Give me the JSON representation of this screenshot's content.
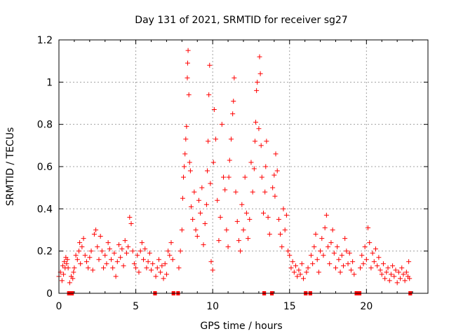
{
  "chart_data": {
    "type": "scatter",
    "title": "Day 131 of 2021, SRMTID for receiver sg27",
    "xlabel": "GPS time / hours",
    "ylabel": "SRMTID / TECUs",
    "xlim": [
      0,
      24
    ],
    "ylim": [
      0,
      1.2
    ],
    "x_ticks": [
      0,
      5,
      10,
      15,
      20
    ],
    "y_ticks": [
      0,
      0.2,
      0.4,
      0.6,
      0.8,
      1,
      1.2
    ],
    "x_tick_labels": [
      "0",
      "5",
      "10",
      "15",
      "20"
    ],
    "y_tick_labels": [
      "0",
      "0.2",
      "0.4",
      "0.6",
      "0.8",
      "1",
      "1.2"
    ],
    "grid": true,
    "legend": "none",
    "marker": "+",
    "color": "#ff0000",
    "baseline_segments": [
      [
        0.6,
        0.7
      ],
      [
        0.8,
        0.9
      ],
      [
        6.2,
        6.3
      ],
      [
        7.4,
        7.5
      ],
      [
        7.7,
        7.8
      ],
      [
        13.3,
        13.4
      ],
      [
        13.8,
        13.9
      ],
      [
        16.0,
        16.1
      ],
      [
        16.3,
        16.4
      ],
      [
        19.3,
        19.4
      ],
      [
        19.5,
        19.6
      ],
      [
        22.8,
        22.9
      ]
    ],
    "series": [
      {
        "name": "SRMTID",
        "points": [
          [
            0.0,
            0.08
          ],
          [
            0.1,
            0.1
          ],
          [
            0.2,
            0.06
          ],
          [
            0.25,
            0.13
          ],
          [
            0.3,
            0.09
          ],
          [
            0.35,
            0.15
          ],
          [
            0.4,
            0.12
          ],
          [
            0.45,
            0.17
          ],
          [
            0.5,
            0.14
          ],
          [
            0.55,
            0.16
          ],
          [
            0.6,
            0.12
          ],
          [
            0.7,
            0.05
          ],
          [
            0.8,
            0.08
          ],
          [
            0.9,
            0.07
          ],
          [
            0.95,
            0.1
          ],
          [
            1.0,
            0.12
          ],
          [
            1.1,
            0.18
          ],
          [
            1.2,
            0.16
          ],
          [
            1.3,
            0.2
          ],
          [
            1.35,
            0.24
          ],
          [
            1.4,
            0.14
          ],
          [
            1.5,
            0.22
          ],
          [
            1.6,
            0.26
          ],
          [
            1.7,
            0.18
          ],
          [
            1.8,
            0.15
          ],
          [
            1.9,
            0.12
          ],
          [
            2.0,
            0.17
          ],
          [
            2.1,
            0.2
          ],
          [
            2.2,
            0.11
          ],
          [
            2.3,
            0.28
          ],
          [
            2.4,
            0.3
          ],
          [
            2.5,
            0.22
          ],
          [
            2.6,
            0.16
          ],
          [
            2.7,
            0.27
          ],
          [
            2.8,
            0.2
          ],
          [
            2.9,
            0.12
          ],
          [
            3.0,
            0.18
          ],
          [
            3.1,
            0.14
          ],
          [
            3.2,
            0.24
          ],
          [
            3.3,
            0.21
          ],
          [
            3.4,
            0.16
          ],
          [
            3.5,
            0.12
          ],
          [
            3.6,
            0.19
          ],
          [
            3.7,
            0.08
          ],
          [
            3.8,
            0.15
          ],
          [
            3.9,
            0.23
          ],
          [
            4.0,
            0.17
          ],
          [
            4.1,
            0.21
          ],
          [
            4.2,
            0.13
          ],
          [
            4.3,
            0.25
          ],
          [
            4.4,
            0.19
          ],
          [
            4.5,
            0.22
          ],
          [
            4.6,
            0.36
          ],
          [
            4.7,
            0.33
          ],
          [
            4.8,
            0.2
          ],
          [
            4.9,
            0.14
          ],
          [
            5.0,
            0.12
          ],
          [
            5.1,
            0.18
          ],
          [
            5.2,
            0.1
          ],
          [
            5.3,
            0.2
          ],
          [
            5.4,
            0.24
          ],
          [
            5.5,
            0.16
          ],
          [
            5.6,
            0.21
          ],
          [
            5.7,
            0.12
          ],
          [
            5.8,
            0.15
          ],
          [
            5.9,
            0.19
          ],
          [
            6.0,
            0.11
          ],
          [
            6.1,
            0.14
          ],
          [
            6.3,
            0.08
          ],
          [
            6.4,
            0.12
          ],
          [
            6.5,
            0.16
          ],
          [
            6.6,
            0.1
          ],
          [
            6.7,
            0.13
          ],
          [
            6.8,
            0.07
          ],
          [
            6.9,
            0.14
          ],
          [
            7.0,
            0.09
          ],
          [
            7.1,
            0.2
          ],
          [
            7.2,
            0.18
          ],
          [
            7.3,
            0.24
          ],
          [
            7.4,
            0.16
          ],
          [
            7.8,
            0.12
          ],
          [
            7.9,
            0.2
          ],
          [
            8.0,
            0.3
          ],
          [
            8.05,
            0.45
          ],
          [
            8.1,
            0.55
          ],
          [
            8.15,
            0.6
          ],
          [
            8.2,
            0.66
          ],
          [
            8.25,
            0.73
          ],
          [
            8.3,
            0.79
          ],
          [
            8.35,
            1.02
          ],
          [
            8.37,
            1.09
          ],
          [
            8.4,
            1.15
          ],
          [
            8.45,
            0.94
          ],
          [
            8.5,
            0.62
          ],
          [
            8.55,
            0.58
          ],
          [
            8.6,
            0.41
          ],
          [
            8.7,
            0.35
          ],
          [
            8.8,
            0.48
          ],
          [
            8.9,
            0.3
          ],
          [
            9.0,
            0.27
          ],
          [
            9.1,
            0.44
          ],
          [
            9.2,
            0.38
          ],
          [
            9.3,
            0.5
          ],
          [
            9.4,
            0.23
          ],
          [
            9.5,
            0.33
          ],
          [
            9.6,
            0.42
          ],
          [
            9.65,
            0.58
          ],
          [
            9.7,
            0.72
          ],
          [
            9.75,
            0.94
          ],
          [
            9.8,
            1.08
          ],
          [
            9.85,
            0.52
          ],
          [
            9.9,
            0.15
          ],
          [
            10.0,
            0.11
          ],
          [
            10.05,
            0.62
          ],
          [
            10.1,
            0.87
          ],
          [
            10.2,
            0.73
          ],
          [
            10.3,
            0.44
          ],
          [
            10.4,
            0.25
          ],
          [
            10.5,
            0.36
          ],
          [
            10.6,
            0.8
          ],
          [
            10.7,
            0.55
          ],
          [
            10.8,
            0.49
          ],
          [
            10.9,
            0.3
          ],
          [
            11.0,
            0.22
          ],
          [
            11.05,
            0.55
          ],
          [
            11.1,
            0.63
          ],
          [
            11.2,
            0.73
          ],
          [
            11.3,
            0.85
          ],
          [
            11.35,
            0.91
          ],
          [
            11.4,
            1.02
          ],
          [
            11.5,
            0.48
          ],
          [
            11.6,
            0.34
          ],
          [
            11.7,
            0.25
          ],
          [
            11.8,
            0.2
          ],
          [
            11.9,
            0.42
          ],
          [
            12.0,
            0.3
          ],
          [
            12.1,
            0.55
          ],
          [
            12.2,
            0.38
          ],
          [
            12.3,
            0.26
          ],
          [
            12.4,
            0.35
          ],
          [
            12.5,
            0.62
          ],
          [
            12.6,
            0.48
          ],
          [
            12.7,
            0.59
          ],
          [
            12.75,
            0.72
          ],
          [
            12.8,
            0.81
          ],
          [
            12.85,
            0.96
          ],
          [
            12.9,
            1.0
          ],
          [
            13.0,
            0.78
          ],
          [
            13.05,
            1.12
          ],
          [
            13.1,
            1.04
          ],
          [
            13.15,
            0.7
          ],
          [
            13.2,
            0.55
          ],
          [
            13.3,
            0.38
          ],
          [
            13.4,
            0.48
          ],
          [
            13.45,
            0.6
          ],
          [
            13.5,
            0.72
          ],
          [
            13.6,
            0.36
          ],
          [
            13.7,
            0.28
          ],
          [
            13.9,
            0.5
          ],
          [
            14.0,
            0.56
          ],
          [
            14.05,
            0.46
          ],
          [
            14.1,
            0.66
          ],
          [
            14.2,
            0.58
          ],
          [
            14.3,
            0.35
          ],
          [
            14.4,
            0.28
          ],
          [
            14.5,
            0.22
          ],
          [
            14.6,
            0.4
          ],
          [
            14.7,
            0.3
          ],
          [
            14.8,
            0.37
          ],
          [
            14.9,
            0.2
          ],
          [
            15.0,
            0.18
          ],
          [
            15.1,
            0.12
          ],
          [
            15.2,
            0.15
          ],
          [
            15.3,
            0.1
          ],
          [
            15.4,
            0.13
          ],
          [
            15.5,
            0.08
          ],
          [
            15.6,
            0.11
          ],
          [
            15.7,
            0.09
          ],
          [
            15.8,
            0.14
          ],
          [
            15.9,
            0.07
          ],
          [
            16.1,
            0.1
          ],
          [
            16.2,
            0.12
          ],
          [
            16.4,
            0.18
          ],
          [
            16.5,
            0.14
          ],
          [
            16.6,
            0.22
          ],
          [
            16.7,
            0.28
          ],
          [
            16.8,
            0.16
          ],
          [
            16.9,
            0.1
          ],
          [
            17.0,
            0.2
          ],
          [
            17.1,
            0.26
          ],
          [
            17.2,
            0.18
          ],
          [
            17.3,
            0.31
          ],
          [
            17.4,
            0.37
          ],
          [
            17.5,
            0.22
          ],
          [
            17.6,
            0.14
          ],
          [
            17.7,
            0.24
          ],
          [
            17.8,
            0.3
          ],
          [
            17.9,
            0.19
          ],
          [
            18.0,
            0.12
          ],
          [
            18.1,
            0.22
          ],
          [
            18.2,
            0.16
          ],
          [
            18.3,
            0.1
          ],
          [
            18.4,
            0.18
          ],
          [
            18.5,
            0.13
          ],
          [
            18.6,
            0.26
          ],
          [
            18.7,
            0.2
          ],
          [
            18.8,
            0.14
          ],
          [
            18.9,
            0.19
          ],
          [
            19.0,
            0.11
          ],
          [
            19.1,
            0.15
          ],
          [
            19.2,
            0.09
          ],
          [
            19.6,
            0.12
          ],
          [
            19.7,
            0.18
          ],
          [
            19.8,
            0.14
          ],
          [
            19.9,
            0.22
          ],
          [
            20.0,
            0.16
          ],
          [
            20.1,
            0.31
          ],
          [
            20.2,
            0.24
          ],
          [
            20.3,
            0.12
          ],
          [
            20.4,
            0.19
          ],
          [
            20.5,
            0.15
          ],
          [
            20.6,
            0.21
          ],
          [
            20.7,
            0.13
          ],
          [
            20.8,
            0.17
          ],
          [
            20.9,
            0.11
          ],
          [
            21.0,
            0.09
          ],
          [
            21.1,
            0.14
          ],
          [
            21.2,
            0.07
          ],
          [
            21.3,
            0.1
          ],
          [
            21.4,
            0.12
          ],
          [
            21.5,
            0.06
          ],
          [
            21.6,
            0.09
          ],
          [
            21.7,
            0.13
          ],
          [
            21.8,
            0.08
          ],
          [
            21.9,
            0.11
          ],
          [
            22.0,
            0.05
          ],
          [
            22.1,
            0.1
          ],
          [
            22.2,
            0.07
          ],
          [
            22.3,
            0.12
          ],
          [
            22.4,
            0.09
          ],
          [
            22.5,
            0.06
          ],
          [
            22.6,
            0.1
          ],
          [
            22.7,
            0.08
          ],
          [
            22.75,
            0.15
          ],
          [
            22.8,
            0.07
          ]
        ]
      }
    ]
  }
}
